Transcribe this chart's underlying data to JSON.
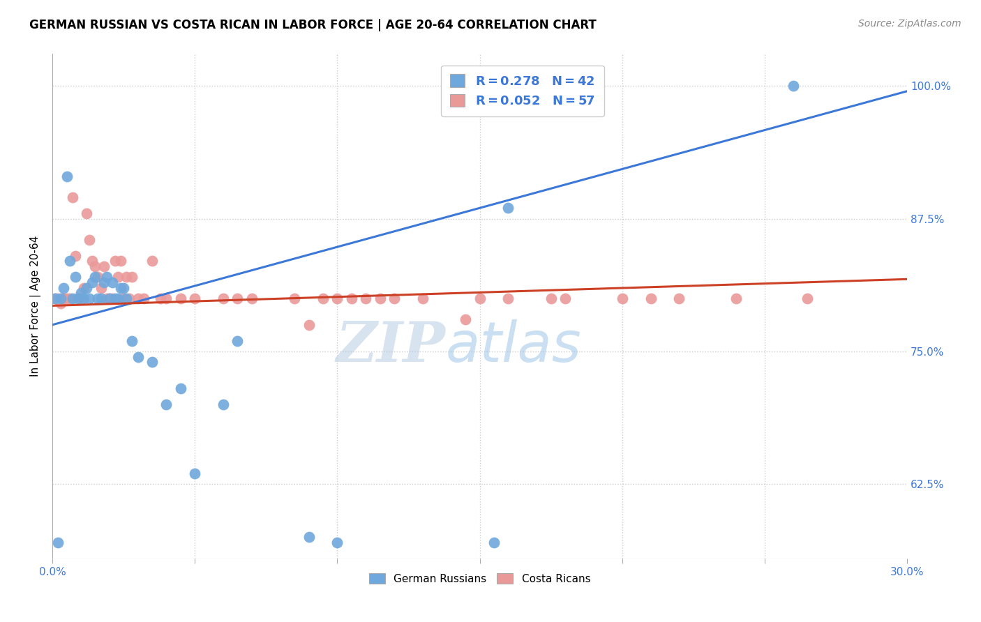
{
  "title": "GERMAN RUSSIAN VS COSTA RICAN IN LABOR FORCE | AGE 20-64 CORRELATION CHART",
  "source": "Source: ZipAtlas.com",
  "ylabel": "In Labor Force | Age 20-64",
  "xlim": [
    0.0,
    0.3
  ],
  "ylim": [
    0.555,
    1.03
  ],
  "xtick_vals": [
    0.0,
    0.05,
    0.1,
    0.15,
    0.2,
    0.25,
    0.3
  ],
  "xtick_labels": [
    "0.0%",
    "",
    "",
    "",
    "",
    "",
    "30.0%"
  ],
  "ytick_values": [
    0.625,
    0.75,
    0.875,
    1.0
  ],
  "ytick_labels": [
    "62.5%",
    "75.0%",
    "87.5%",
    "100.0%"
  ],
  "blue_color": "#6fa8dc",
  "pink_color": "#ea9999",
  "blue_line_color": "#3c78d8",
  "pink_line_color": "#cc4125",
  "watermark_zip_color": "#b8cce4",
  "watermark_atlas_color": "#9fc5e8",
  "title_fontsize": 12,
  "source_fontsize": 10,
  "tick_fontsize": 11,
  "ylabel_fontsize": 11,
  "legend_fontsize": 13,
  "gr_x": [
    0.001,
    0.002,
    0.003,
    0.004,
    0.005,
    0.006,
    0.007,
    0.008,
    0.009,
    0.01,
    0.011,
    0.012,
    0.013,
    0.014,
    0.015,
    0.016,
    0.017,
    0.018,
    0.019,
    0.02,
    0.021,
    0.022,
    0.023,
    0.024,
    0.025,
    0.026,
    0.028,
    0.03,
    0.035,
    0.04,
    0.045,
    0.05,
    0.06,
    0.065,
    0.09,
    0.1,
    0.155,
    0.16,
    0.26
  ],
  "gr_y": [
    0.8,
    0.57,
    0.8,
    0.81,
    0.915,
    0.835,
    0.8,
    0.82,
    0.8,
    0.805,
    0.8,
    0.81,
    0.8,
    0.815,
    0.82,
    0.8,
    0.8,
    0.815,
    0.82,
    0.8,
    0.815,
    0.8,
    0.8,
    0.81,
    0.81,
    0.8,
    0.76,
    0.745,
    0.74,
    0.7,
    0.715,
    0.635,
    0.7,
    0.76,
    0.575,
    0.57,
    0.57,
    0.885,
    1.0
  ],
  "cr_x": [
    0.001,
    0.002,
    0.003,
    0.004,
    0.005,
    0.006,
    0.007,
    0.008,
    0.009,
    0.01,
    0.011,
    0.012,
    0.013,
    0.014,
    0.015,
    0.016,
    0.017,
    0.018,
    0.019,
    0.02,
    0.021,
    0.022,
    0.023,
    0.024,
    0.025,
    0.026,
    0.027,
    0.028,
    0.03,
    0.032,
    0.035,
    0.038,
    0.04,
    0.045,
    0.05,
    0.06,
    0.065,
    0.07,
    0.085,
    0.09,
    0.095,
    0.1,
    0.105,
    0.115,
    0.13,
    0.145,
    0.16,
    0.175,
    0.2,
    0.22,
    0.24,
    0.265,
    0.11,
    0.12,
    0.15,
    0.18,
    0.21
  ],
  "cr_y": [
    0.8,
    0.8,
    0.795,
    0.8,
    0.8,
    0.8,
    0.895,
    0.84,
    0.8,
    0.8,
    0.81,
    0.88,
    0.855,
    0.835,
    0.83,
    0.82,
    0.81,
    0.83,
    0.8,
    0.8,
    0.8,
    0.835,
    0.82,
    0.835,
    0.8,
    0.82,
    0.8,
    0.82,
    0.8,
    0.8,
    0.835,
    0.8,
    0.8,
    0.8,
    0.8,
    0.8,
    0.8,
    0.8,
    0.8,
    0.775,
    0.8,
    0.8,
    0.8,
    0.8,
    0.8,
    0.78,
    0.8,
    0.8,
    0.8,
    0.8,
    0.8,
    0.8,
    0.8,
    0.8,
    0.8,
    0.8,
    0.8
  ],
  "blue_trend_x": [
    0.0,
    0.3
  ],
  "blue_trend_y": [
    0.775,
    0.995
  ],
  "pink_trend_x": [
    0.0,
    0.3
  ],
  "pink_trend_y": [
    0.793,
    0.818
  ]
}
